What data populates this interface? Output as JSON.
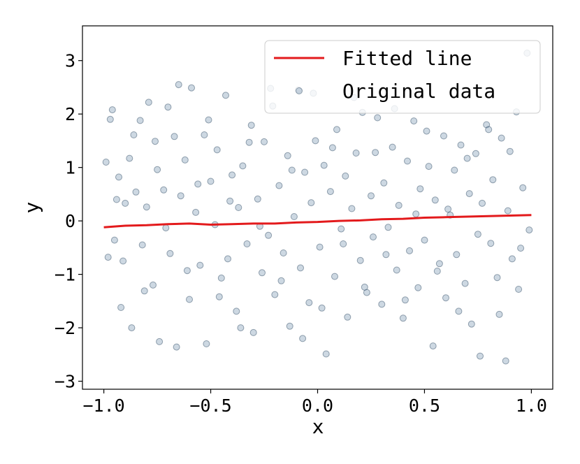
{
  "chart_data": {
    "type": "scatter",
    "title": "",
    "xlabel": "x",
    "ylabel": "y",
    "xlim": [
      -1.1,
      1.1
    ],
    "ylim": [
      -3.15,
      3.65
    ],
    "x_ticks": [
      -1.0,
      -0.5,
      0.0,
      0.5,
      1.0
    ],
    "x_tick_labels": [
      "−1.0",
      "−0.5",
      "0.0",
      "0.5",
      "1.0"
    ],
    "y_ticks": [
      -3,
      -2,
      -1,
      0,
      1,
      2,
      3
    ],
    "y_tick_labels": [
      "−3",
      "−2",
      "−1",
      "0",
      "1",
      "2",
      "3"
    ],
    "grid": false,
    "legend_position": "top-right",
    "series": [
      {
        "name": "Original data",
        "kind": "scatter",
        "color": "#5b7f9f",
        "opacity": 0.3,
        "points": [
          [
            -0.99,
            1.1
          ],
          [
            -0.97,
            1.9
          ],
          [
            -0.96,
            2.08
          ],
          [
            -0.95,
            -0.36
          ],
          [
            -0.93,
            0.82
          ],
          [
            -0.92,
            -1.62
          ],
          [
            -0.9,
            0.33
          ],
          [
            -0.88,
            1.17
          ],
          [
            -0.87,
            -2.0
          ],
          [
            -0.85,
            0.54
          ],
          [
            -0.83,
            1.88
          ],
          [
            -0.82,
            -0.45
          ],
          [
            -0.8,
            0.26
          ],
          [
            -0.79,
            2.22
          ],
          [
            -0.77,
            -1.2
          ],
          [
            -0.75,
            0.96
          ],
          [
            -0.74,
            -2.26
          ],
          [
            -0.72,
            0.58
          ],
          [
            -0.7,
            2.13
          ],
          [
            -0.69,
            -0.61
          ],
          [
            -0.67,
            1.58
          ],
          [
            -0.66,
            -2.36
          ],
          [
            -0.64,
            0.47
          ],
          [
            -0.62,
            1.14
          ],
          [
            -0.6,
            -1.47
          ],
          [
            -0.59,
            2.49
          ],
          [
            -0.57,
            0.16
          ],
          [
            -0.55,
            -0.83
          ],
          [
            -0.53,
            1.61
          ],
          [
            -0.52,
            -2.3
          ],
          [
            -0.5,
            0.74
          ],
          [
            -0.48,
            -0.07
          ],
          [
            -0.47,
            1.33
          ],
          [
            -0.45,
            -1.07
          ],
          [
            -0.43,
            2.35
          ],
          [
            -0.42,
            -0.71
          ],
          [
            -0.4,
            0.86
          ],
          [
            -0.38,
            -1.69
          ],
          [
            -0.37,
            0.25
          ],
          [
            -0.35,
            1.03
          ],
          [
            -0.33,
            -0.43
          ],
          [
            -0.31,
            1.79
          ],
          [
            -0.3,
            -2.09
          ],
          [
            -0.28,
            0.41
          ],
          [
            -0.26,
            -0.97
          ],
          [
            -0.25,
            1.48
          ],
          [
            -0.23,
            -0.27
          ],
          [
            -0.21,
            2.15
          ],
          [
            -0.2,
            -1.38
          ],
          [
            -0.18,
            0.66
          ],
          [
            -0.16,
            -0.6
          ],
          [
            -0.14,
            1.22
          ],
          [
            -0.13,
            -1.97
          ],
          [
            -0.11,
            0.08
          ],
          [
            -0.09,
            2.45
          ],
          [
            -0.08,
            -0.88
          ],
          [
            -0.06,
            0.91
          ],
          [
            -0.04,
            -1.53
          ],
          [
            -0.03,
            0.34
          ],
          [
            -0.01,
            1.5
          ],
          [
            0.01,
            -0.49
          ],
          [
            0.03,
            1.04
          ],
          [
            0.04,
            -2.49
          ],
          [
            0.06,
            0.55
          ],
          [
            0.08,
            -1.04
          ],
          [
            0.09,
            1.71
          ],
          [
            0.11,
            -0.15
          ],
          [
            0.13,
            0.84
          ],
          [
            0.14,
            -1.8
          ],
          [
            0.16,
            0.23
          ],
          [
            0.18,
            1.27
          ],
          [
            0.2,
            -0.74
          ],
          [
            0.21,
            2.03
          ],
          [
            0.23,
            -1.34
          ],
          [
            0.25,
            0.47
          ],
          [
            0.26,
            -0.3
          ],
          [
            0.28,
            1.93
          ],
          [
            0.3,
            -1.56
          ],
          [
            0.31,
            0.71
          ],
          [
            0.33,
            -0.12
          ],
          [
            0.35,
            1.38
          ],
          [
            0.37,
            -0.92
          ],
          [
            0.38,
            0.29
          ],
          [
            0.4,
            -1.82
          ],
          [
            0.42,
            1.12
          ],
          [
            0.43,
            -0.56
          ],
          [
            0.45,
            1.87
          ],
          [
            0.47,
            -1.25
          ],
          [
            0.48,
            0.6
          ],
          [
            0.5,
            -0.36
          ],
          [
            0.52,
            1.02
          ],
          [
            0.54,
            -2.34
          ],
          [
            0.55,
            0.39
          ],
          [
            0.57,
            -0.8
          ],
          [
            0.59,
            1.59
          ],
          [
            0.6,
            -1.44
          ],
          [
            0.62,
            0.11
          ],
          [
            0.64,
            0.95
          ],
          [
            0.65,
            -0.63
          ],
          [
            0.67,
            1.42
          ],
          [
            0.69,
            -1.17
          ],
          [
            0.71,
            0.51
          ],
          [
            0.72,
            -1.93
          ],
          [
            0.74,
            1.26
          ],
          [
            0.76,
            -2.53
          ],
          [
            0.77,
            0.33
          ],
          [
            0.79,
            1.8
          ],
          [
            0.81,
            -0.42
          ],
          [
            0.82,
            0.77
          ],
          [
            0.84,
            -1.06
          ],
          [
            0.86,
            1.55
          ],
          [
            0.88,
            -2.62
          ],
          [
            0.89,
            0.19
          ],
          [
            0.91,
            -0.71
          ],
          [
            0.93,
            2.04
          ],
          [
            0.94,
            -1.28
          ],
          [
            0.96,
            0.62
          ],
          [
            0.98,
            3.14
          ],
          [
            0.99,
            -0.17
          ],
          [
            -0.98,
            -0.68
          ],
          [
            -0.94,
            0.4
          ],
          [
            -0.91,
            -0.75
          ],
          [
            -0.86,
            1.61
          ],
          [
            -0.81,
            -1.31
          ],
          [
            -0.76,
            1.49
          ],
          [
            -0.71,
            -0.13
          ],
          [
            -0.65,
            2.55
          ],
          [
            -0.61,
            -0.93
          ],
          [
            -0.56,
            0.69
          ],
          [
            -0.51,
            1.89
          ],
          [
            -0.46,
            -1.42
          ],
          [
            -0.41,
            0.37
          ],
          [
            -0.36,
            -2.0
          ],
          [
            -0.32,
            1.47
          ],
          [
            -0.27,
            -0.1
          ],
          [
            -0.22,
            2.48
          ],
          [
            -0.17,
            -1.12
          ],
          [
            -0.12,
            0.95
          ],
          [
            -0.07,
            -2.2
          ],
          [
            -0.02,
            2.39
          ],
          [
            0.02,
            -1.63
          ],
          [
            0.07,
            1.37
          ],
          [
            0.12,
            -0.43
          ],
          [
            0.17,
            2.31
          ],
          [
            0.22,
            -1.24
          ],
          [
            0.27,
            1.28
          ],
          [
            0.32,
            -0.63
          ],
          [
            0.36,
            2.1
          ],
          [
            0.41,
            -1.48
          ],
          [
            0.46,
            0.13
          ],
          [
            0.51,
            1.68
          ],
          [
            0.56,
            -0.94
          ],
          [
            0.61,
            0.22
          ],
          [
            0.66,
            -1.69
          ],
          [
            0.7,
            1.17
          ],
          [
            0.75,
            -0.25
          ],
          [
            0.8,
            1.71
          ],
          [
            0.85,
            -1.75
          ],
          [
            0.9,
            1.3
          ],
          [
            0.95,
            -0.51
          ]
        ]
      },
      {
        "name": "Fitted line",
        "kind": "line",
        "color": "#e31a1c",
        "points": [
          [
            -1.0,
            -0.12
          ],
          [
            -0.9,
            -0.09
          ],
          [
            -0.8,
            -0.08
          ],
          [
            -0.7,
            -0.06
          ],
          [
            -0.6,
            -0.05
          ],
          [
            -0.5,
            -0.07
          ],
          [
            -0.4,
            -0.06
          ],
          [
            -0.3,
            -0.05
          ],
          [
            -0.2,
            -0.05
          ],
          [
            -0.1,
            -0.03
          ],
          [
            0.0,
            -0.02
          ],
          [
            0.1,
            0.0
          ],
          [
            0.2,
            0.01
          ],
          [
            0.3,
            0.03
          ],
          [
            0.4,
            0.04
          ],
          [
            0.5,
            0.06
          ],
          [
            0.6,
            0.07
          ],
          [
            0.7,
            0.08
          ],
          [
            0.8,
            0.09
          ],
          [
            0.9,
            0.1
          ],
          [
            1.0,
            0.11
          ]
        ]
      }
    ],
    "legend": [
      {
        "label": "Fitted line",
        "kind": "line",
        "color": "#e31a1c"
      },
      {
        "label": "Original data",
        "kind": "scatter",
        "color": "#5b7f9f"
      }
    ]
  }
}
